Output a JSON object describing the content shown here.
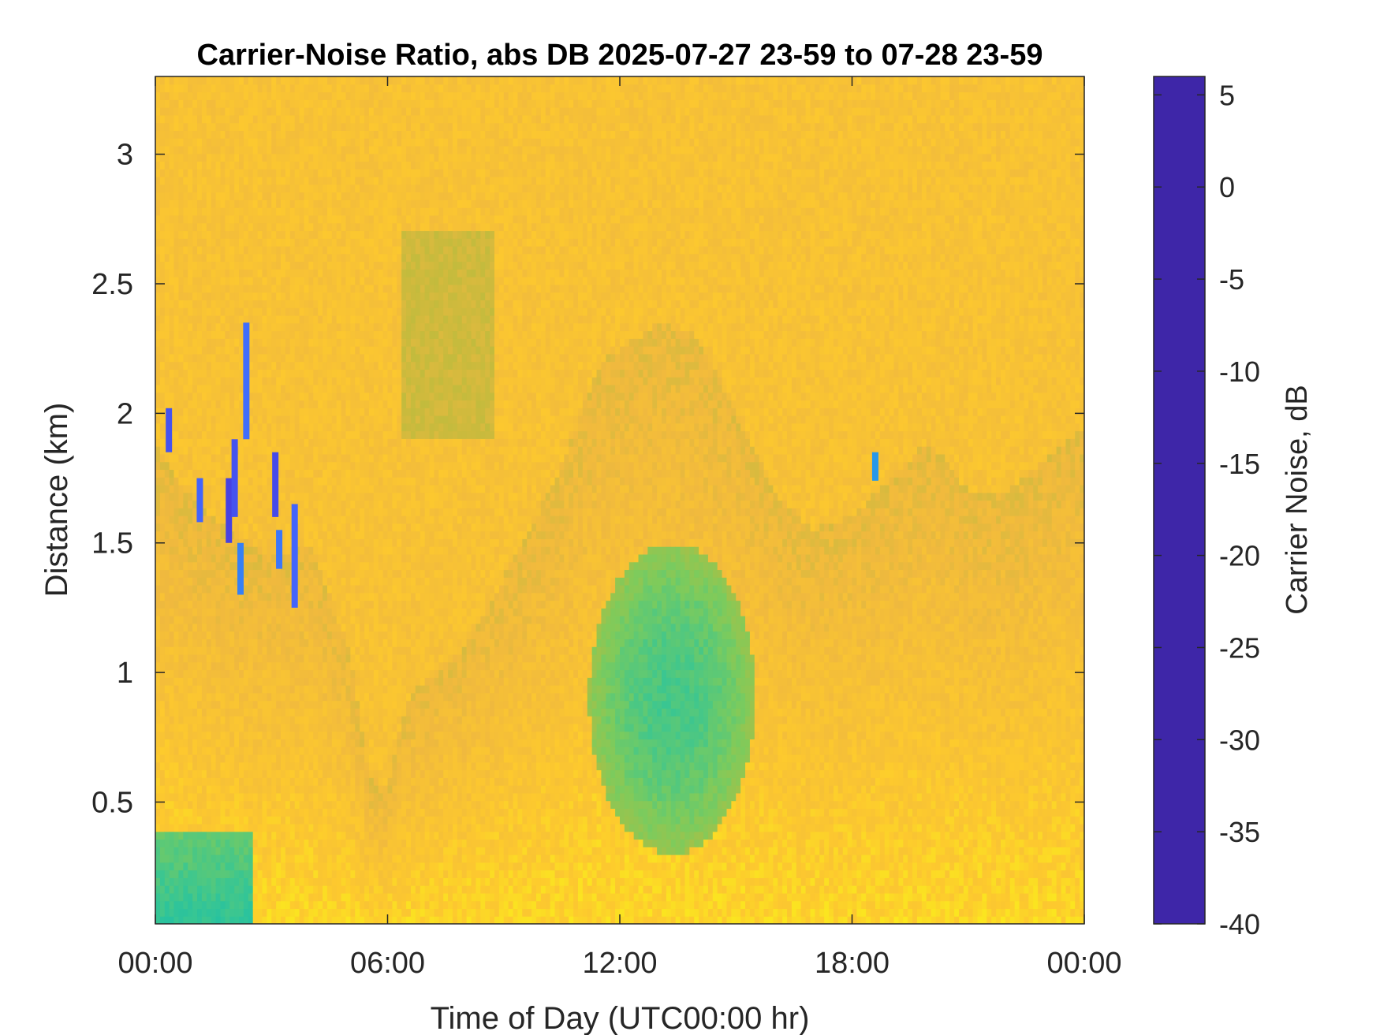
{
  "chart_data": {
    "type": "heatmap",
    "title": "Carrier-Noise Ratio, abs DB 2025-07-27 23-59 to 07-28 23-59",
    "xlabel": "Time of Day (UTC00:00 hr)",
    "ylabel": "Distance (km)",
    "xlim": [
      0,
      24
    ],
    "ylim": [
      0.03,
      3.3
    ],
    "x_ticks": [
      0,
      6,
      12,
      18,
      24
    ],
    "x_tick_labels": [
      "00:00",
      "06:00",
      "12:00",
      "18:00",
      "00:00"
    ],
    "y_ticks": [
      0.5,
      1,
      1.5,
      2,
      2.5,
      3
    ],
    "y_tick_labels": [
      "0.5",
      "1",
      "1.5",
      "2",
      "2.5",
      "3"
    ],
    "colorbar": {
      "label": "Carrier Noise, dB",
      "range": [
        -40,
        6
      ],
      "ticks": [
        5,
        0,
        -5,
        -10,
        -15,
        -20,
        -25,
        -30,
        -35,
        -40
      ],
      "tick_labels": [
        "5",
        "0",
        "-5",
        "-10",
        "-15",
        "-20",
        "-25",
        "-30",
        "-35",
        "-40"
      ],
      "colormap_reversed": true
    },
    "background_level_db": -34,
    "features": [
      {
        "desc": "boundary layer low CNR region",
        "x": [
          0,
          24
        ],
        "top_km_profile": [
          [
            0,
            1.9
          ],
          [
            0.5,
            1.75
          ],
          [
            1.5,
            1.6
          ],
          [
            3,
            1.45
          ],
          [
            4,
            1.5
          ],
          [
            5,
            1.1
          ],
          [
            5.5,
            0.6
          ],
          [
            6,
            0.55
          ],
          [
            6.5,
            0.9
          ],
          [
            8,
            1.1
          ],
          [
            9.5,
            1.5
          ],
          [
            10.5,
            1.8
          ],
          [
            11.5,
            2.2
          ],
          [
            13,
            2.35
          ],
          [
            14,
            2.3
          ],
          [
            15,
            2.0
          ],
          [
            16,
            1.7
          ],
          [
            17,
            1.55
          ],
          [
            18,
            1.6
          ],
          [
            19,
            1.75
          ],
          [
            20,
            1.9
          ],
          [
            21,
            1.7
          ],
          [
            22,
            1.7
          ],
          [
            24,
            1.95
          ]
        ]
      },
      {
        "desc": "elevated layer",
        "x": [
          6.4,
          8.8
        ],
        "y": [
          1.9,
          2.7
        ],
        "level_db": -29
      },
      {
        "desc": "strong returns near surface",
        "x": [
          0,
          2.5
        ],
        "y": [
          0.03,
          0.4
        ],
        "level_db": -18
      },
      {
        "desc": "mid-day convective core",
        "x": [
          11.2,
          15.5
        ],
        "y": [
          0.3,
          1.5
        ],
        "level_db": -20
      }
    ],
    "strong_echoes": [
      {
        "x": 0.35,
        "y": [
          1.85,
          2.02
        ],
        "db": 0
      },
      {
        "x": 1.15,
        "y": [
          1.58,
          1.75
        ],
        "db": -2
      },
      {
        "x": 1.9,
        "y": [
          1.5,
          1.75
        ],
        "db": 2
      },
      {
        "x": 2.05,
        "y": [
          1.6,
          1.9
        ],
        "db": 0
      },
      {
        "x": 2.35,
        "y": [
          1.9,
          2.35
        ],
        "db": -3
      },
      {
        "x": 2.2,
        "y": [
          1.3,
          1.5
        ],
        "db": -5
      },
      {
        "x": 3.1,
        "y": [
          1.6,
          1.85
        ],
        "db": 1
      },
      {
        "x": 3.2,
        "y": [
          1.4,
          1.55
        ],
        "db": -4
      },
      {
        "x": 3.6,
        "y": [
          1.25,
          1.65
        ],
        "db": -2
      },
      {
        "x": 18.6,
        "y": [
          1.74,
          1.85
        ],
        "db": -8
      }
    ],
    "colors": {
      "colormap": [
        "#3e26a8",
        "#4743e4",
        "#4367fd",
        "#2f8ff0",
        "#1ba9d9",
        "#0cbbb4",
        "#38c693",
        "#7dcb5c",
        "#bbbb3d",
        "#f0b93e",
        "#fdc92e",
        "#f9fb15"
      ]
    }
  }
}
